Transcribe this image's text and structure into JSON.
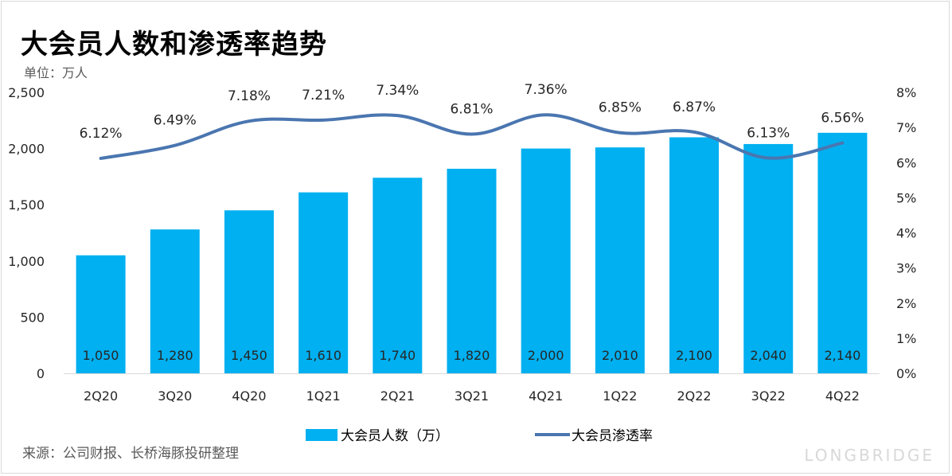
{
  "title": "大会员人数和渗透率趋势",
  "unit": "单位：万人",
  "source": "来源：公司财报、长桥海豚投研整理",
  "watermark": "LONGBRIDGE",
  "colors": {
    "bar": "#00b0f0",
    "line": "#4a76b0"
  },
  "chart_data": {
    "type": "bar+line",
    "categories": [
      "2Q20",
      "3Q20",
      "4Q20",
      "1Q21",
      "2Q21",
      "3Q21",
      "4Q21",
      "1Q22",
      "2Q22",
      "3Q22",
      "4Q22"
    ],
    "series": [
      {
        "name": "大会员人数（万）",
        "type": "bar",
        "axis": "left",
        "values": [
          1050,
          1280,
          1450,
          1610,
          1740,
          1820,
          2000,
          2010,
          2100,
          2040,
          2140
        ],
        "labels": [
          "1,050",
          "1,280",
          "1,450",
          "1,610",
          "1,740",
          "1,820",
          "2,000",
          "2,010",
          "2,100",
          "2,040",
          "2,140"
        ]
      },
      {
        "name": "大会员渗透率",
        "type": "line",
        "axis": "right",
        "values": [
          6.12,
          6.49,
          7.18,
          7.21,
          7.34,
          6.81,
          7.36,
          6.85,
          6.87,
          6.13,
          6.56
        ],
        "labels": [
          "6.12%",
          "6.49%",
          "7.18%",
          "7.21%",
          "7.34%",
          "6.81%",
          "7.36%",
          "6.85%",
          "6.87%",
          "6.13%",
          "6.56%"
        ]
      }
    ],
    "y_left": {
      "range": [
        0,
        2500
      ],
      "ticks": [
        0,
        500,
        1000,
        1500,
        2000,
        2500
      ],
      "tick_labels": [
        "0",
        "500",
        "1,000",
        "1,500",
        "2,000",
        "2,500"
      ]
    },
    "y_right": {
      "range": [
        0,
        8
      ],
      "ticks": [
        0,
        1,
        2,
        3,
        4,
        5,
        6,
        7,
        8
      ],
      "tick_labels": [
        "0%",
        "1%",
        "2%",
        "3%",
        "4%",
        "5%",
        "6%",
        "7%",
        "8%"
      ]
    },
    "legend_position": "bottom",
    "grid": false
  }
}
